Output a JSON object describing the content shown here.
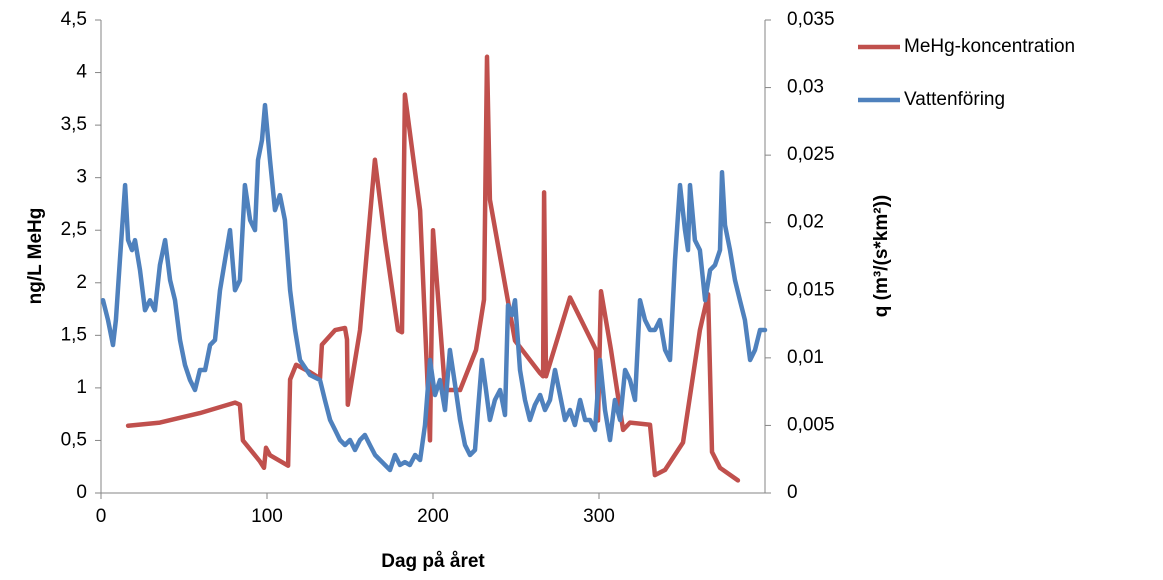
{
  "chart_data": {
    "type": "line",
    "xlabel": "Dag på året",
    "ylabel": "ng/L MeHg",
    "y2label": "q (m³/(s*km²))",
    "xlim": [
      0,
      400
    ],
    "xticks": [
      0,
      100,
      200,
      300
    ],
    "ylim": [
      0,
      4.5
    ],
    "yticks": [
      0,
      {
        "value": 0.5,
        "label": "0,5"
      },
      1,
      {
        "value": 1.5,
        "label": "1,5"
      },
      2,
      {
        "value": 2.5,
        "label": "2,5"
      },
      3,
      {
        "value": 3.5,
        "label": "3,5"
      },
      4,
      {
        "value": 4.5,
        "label": "4,5"
      }
    ],
    "y2lim": [
      0,
      0.035
    ],
    "y2ticks": [
      0,
      {
        "value": 0.005,
        "label": "0,005"
      },
      {
        "value": 0.01,
        "label": "0,01"
      },
      {
        "value": 0.015,
        "label": "0,015"
      },
      {
        "value": 0.02,
        "label": "0,02"
      },
      {
        "value": 0.025,
        "label": "0,025"
      },
      {
        "value": 0.03,
        "label": "0,03"
      },
      {
        "value": 0.035,
        "label": "0,035"
      }
    ],
    "legend": "right",
    "series": [
      {
        "name": "MeHg-koncentration",
        "color": "#c0504d",
        "x": [
          16.3,
          35.5,
          59.6,
          80.7,
          83.7,
          85.5,
          95.8,
          98.2,
          99.4,
          101.8,
          112.7,
          113.9,
          117.5,
          125.9,
          131.9,
          133.1,
          141,
          147,
          148.2,
          148.7,
          156,
          165,
          171.1,
          178.9,
          181.3,
          183.1,
          192.2,
          198.2,
          200,
          207.2,
          216.3,
          225.9,
          230.7,
          232.5,
          234.3,
          249.4,
          264.5,
          266.3,
          266.9,
          268.1,
          282.5,
          298.2,
          299.4,
          301.2,
          307.2,
          314.5,
          318.7,
          330.7,
          333.7,
          339.8,
          350.6,
          360.8,
          365.7,
          368.1,
          372.9,
          383.7
        ],
        "values": [
          0.64,
          0.67,
          0.76,
          0.86,
          0.84,
          0.5,
          0.3,
          0.24,
          0.43,
          0.36,
          0.26,
          1.08,
          1.22,
          1.15,
          1.09,
          1.41,
          1.55,
          1.57,
          1.46,
          0.84,
          1.55,
          3.17,
          2.41,
          1.55,
          1.53,
          3.79,
          2.69,
          0.5,
          2.5,
          0.98,
          0.98,
          1.36,
          1.84,
          4.15,
          2.79,
          1.45,
          1.14,
          1.11,
          2.86,
          1.11,
          1.86,
          1.36,
          0.69,
          1.92,
          1.36,
          0.6,
          0.67,
          0.65,
          0.17,
          0.22,
          0.48,
          1.55,
          1.89,
          0.39,
          0.24,
          0.12
        ]
      },
      {
        "name": "Vattenföring",
        "color": "#4f81bd",
        "axis": "y2",
        "x": [
          1.2,
          4.2,
          7.2,
          9.0,
          11.4,
          14.5,
          16.3,
          18.7,
          20.5,
          23.5,
          26.5,
          29.5,
          32.5,
          35.5,
          38.6,
          41.6,
          44.6,
          47.6,
          50.6,
          53.6,
          56.6,
          59.6,
          62.7,
          65.7,
          68.7,
          71.7,
          74.7,
          77.7,
          80.7,
          83.7,
          86.7,
          89.8,
          92.8,
          94.6,
          97.0,
          98.8,
          101.8,
          104.8,
          107.8,
          110.8,
          113.9,
          116.9,
          119.9,
          125.9,
          131.9,
          134.9,
          138.0,
          141.0,
          144.0,
          147.0,
          150.0,
          153.0,
          156.0,
          159.0,
          162.0,
          165.1,
          168.1,
          171.1,
          174.1,
          177.1,
          180.1,
          183.1,
          186.1,
          189.2,
          192.2,
          195.2,
          198.2,
          201.2,
          204.2,
          207.2,
          210.2,
          213.3,
          216.3,
          219.3,
          222.3,
          225.3,
          227.1,
          229.5,
          231.9,
          234.3,
          237.3,
          240.4,
          243.4,
          245.2,
          247.6,
          249.4,
          252.4,
          255.4,
          258.4,
          261.4,
          264.5,
          267.5,
          270.5,
          273.5,
          276.5,
          279.5,
          282.5,
          285.5,
          288.6,
          291.6,
          294.6,
          297.6,
          300.6,
          303.6,
          306.6,
          309.6,
          312.7,
          315.7,
          318.7,
          321.7,
          324.7,
          327.7,
          330.7,
          333.7,
          336.7,
          339.8,
          342.8,
          345.8,
          348.8,
          351.8,
          353.6,
          354.8,
          357.8,
          360.8,
          363.9,
          366.9,
          369.9,
          372.9,
          374.1,
          375.9,
          378.9,
          381.9,
          384.9,
          387.9,
          391.0,
          394.0,
          397.0,
          400.0
        ],
        "values": [
          0.01427,
          0.0128,
          0.01095,
          0.0128,
          0.01723,
          0.02278,
          0.01871,
          0.01797,
          0.01871,
          0.01649,
          0.01353,
          0.01427,
          0.01353,
          0.01686,
          0.01871,
          0.01575,
          0.01427,
          0.01132,
          0.00947,
          0.00836,
          0.00762,
          0.0091,
          0.0091,
          0.01095,
          0.01132,
          0.01501,
          0.01723,
          0.01945,
          0.01501,
          0.01575,
          0.02278,
          0.02019,
          0.01945,
          0.02463,
          0.02611,
          0.0287,
          0.02463,
          0.02093,
          0.02204,
          0.02019,
          0.01501,
          0.01206,
          0.00984,
          0.00873,
          0.00836,
          0.00688,
          0.0054,
          0.00466,
          0.00392,
          0.00355,
          0.00392,
          0.00318,
          0.00392,
          0.00429,
          0.00355,
          0.00281,
          0.00244,
          0.00207,
          0.0017,
          0.00281,
          0.00207,
          0.00229,
          0.00207,
          0.00281,
          0.00244,
          0.00503,
          0.00984,
          0.00725,
          0.00836,
          0.00614,
          0.01058,
          0.00799,
          0.0054,
          0.00355,
          0.00281,
          0.00318,
          0.00614,
          0.00984,
          0.00762,
          0.0054,
          0.00688,
          0.00762,
          0.00577,
          0.0139,
          0.01316,
          0.01427,
          0.0091,
          0.00688,
          0.0054,
          0.00651,
          0.00725,
          0.00614,
          0.00688,
          0.0091,
          0.00725,
          0.0054,
          0.00614,
          0.00503,
          0.00688,
          0.0054,
          0.0054,
          0.00466,
          0.00984,
          0.00614,
          0.00392,
          0.00688,
          0.0054,
          0.0091,
          0.00836,
          0.00688,
          0.01427,
          0.0128,
          0.01206,
          0.01206,
          0.0128,
          0.01058,
          0.00984,
          0.01723,
          0.02278,
          0.01945,
          0.01797,
          0.02278,
          0.01871,
          0.01797,
          0.01427,
          0.01649,
          0.01686,
          0.01797,
          0.02374,
          0.01982,
          0.01797,
          0.01575,
          0.01427,
          0.0128,
          0.00984,
          0.01058,
          0.01206,
          0.01206
        ]
      }
    ]
  }
}
